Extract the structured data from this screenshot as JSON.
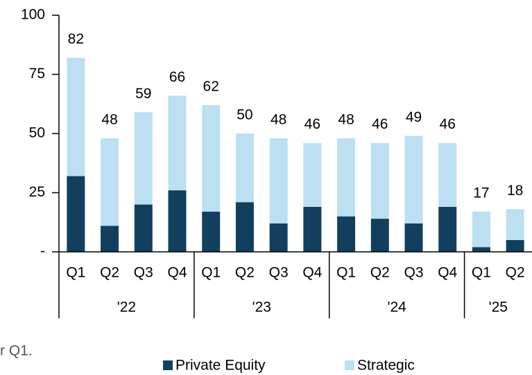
{
  "chart_data": {
    "type": "bar",
    "stacked": true,
    "categories": [
      "Q1",
      "Q2",
      "Q3",
      "Q4",
      "Q1",
      "Q2",
      "Q3",
      "Q4",
      "Q1",
      "Q2",
      "Q3",
      "Q4",
      "Q1",
      "Q2"
    ],
    "groups": [
      {
        "label": "'22",
        "size": 4
      },
      {
        "label": "'23",
        "size": 4
      },
      {
        "label": "'24",
        "size": 4
      },
      {
        "label": "'25",
        "size": 2
      }
    ],
    "series": [
      {
        "name": "Private Equity",
        "color": "#123f5e",
        "values": [
          32,
          11,
          20,
          26,
          17,
          21,
          12,
          19,
          15,
          14,
          12,
          19,
          2,
          5
        ]
      },
      {
        "name": "Strategic",
        "color": "#bcdff2",
        "values": [
          50,
          37,
          39,
          40,
          45,
          29,
          36,
          27,
          33,
          32,
          37,
          27,
          15,
          13
        ]
      }
    ],
    "totals": [
      82,
      48,
      59,
      66,
      62,
      50,
      48,
      46,
      48,
      46,
      49,
      46,
      17,
      18
    ],
    "ylim": [
      0,
      100
    ],
    "yticks": [
      {
        "value": 0,
        "label": "-"
      },
      25,
      50,
      75,
      100
    ],
    "note": "r Q1.",
    "legend": "bottom"
  }
}
